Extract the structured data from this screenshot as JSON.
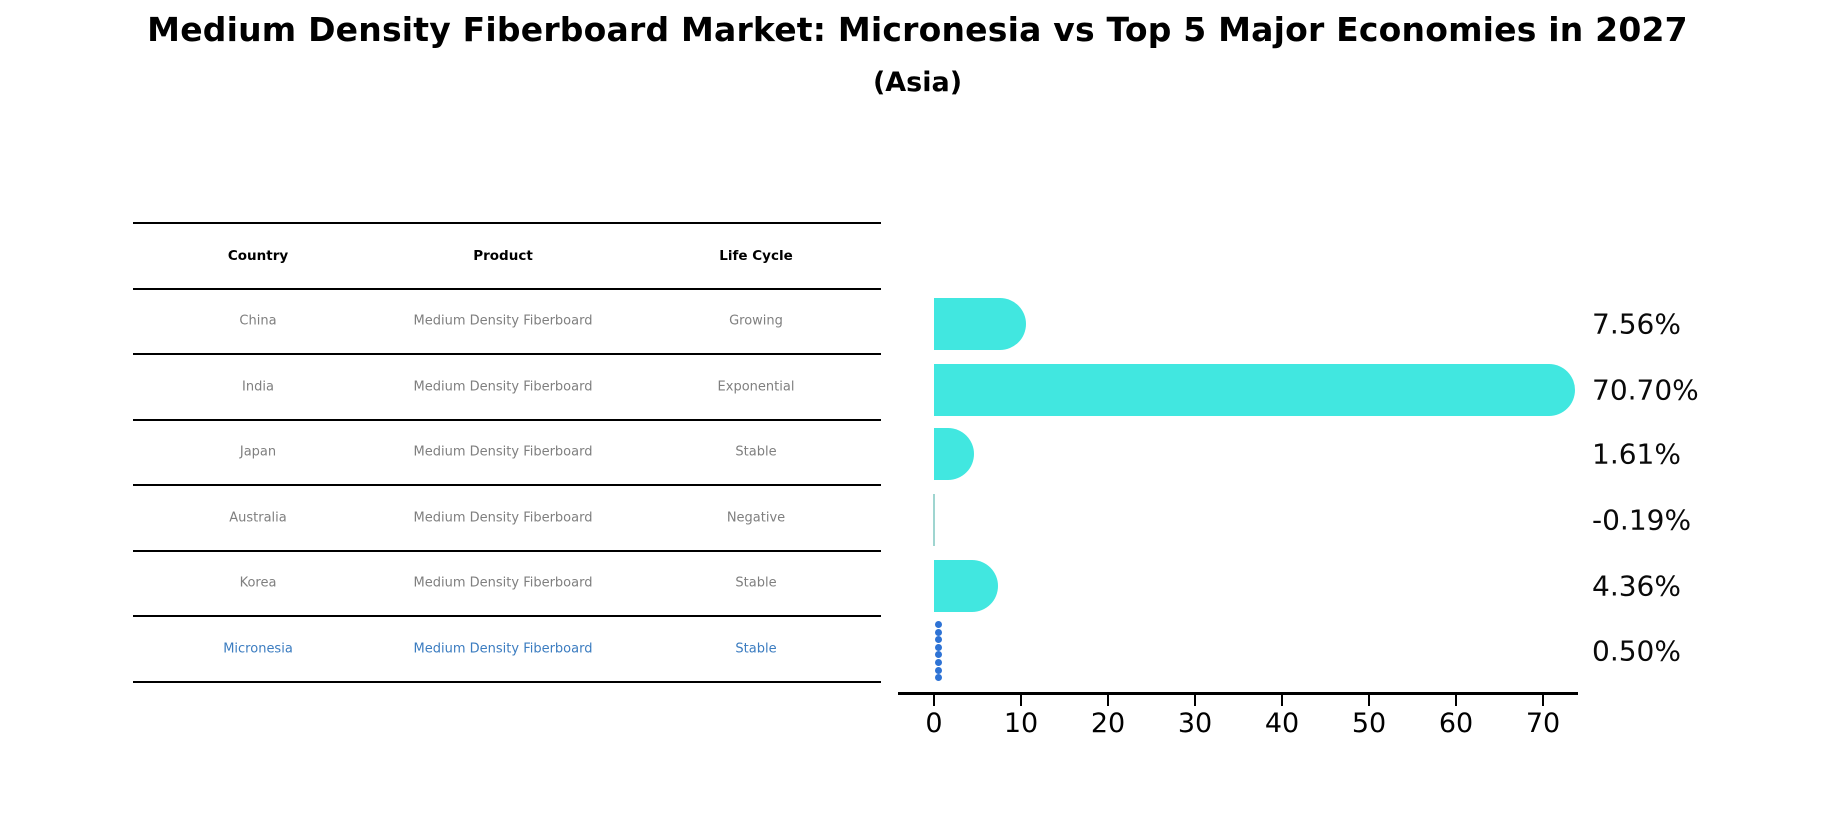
{
  "title": "Medium Density Fiberboard Market: Micronesia vs Top 5 Major Economies in 2027",
  "subtitle": "(Asia)",
  "table": {
    "headers": [
      "Country",
      "Product",
      "Life Cycle"
    ],
    "rows": [
      {
        "country": "China",
        "product": "Medium Density Fiberboard",
        "life_cycle": "Growing",
        "highlight": false
      },
      {
        "country": "India",
        "product": "Medium Density Fiberboard",
        "life_cycle": "Exponential",
        "highlight": false
      },
      {
        "country": "Japan",
        "product": "Medium Density Fiberboard",
        "life_cycle": "Stable",
        "highlight": false
      },
      {
        "country": "Australia",
        "product": "Medium Density Fiberboard",
        "life_cycle": "Negative",
        "highlight": false
      },
      {
        "country": "Korea",
        "product": "Medium Density Fiberboard",
        "life_cycle": "Stable",
        "highlight": false
      },
      {
        "country": "Micronesia",
        "product": "Medium Density Fiberboard",
        "life_cycle": "Stable",
        "highlight": true
      }
    ]
  },
  "chart_data": {
    "type": "bar",
    "orientation": "horizontal",
    "title": "Medium Density Fiberboard Market: Micronesia vs Top 5 Major Economies in 2027 (Asia)",
    "categories": [
      "China",
      "India",
      "Japan",
      "Australia",
      "Korea",
      "Micronesia"
    ],
    "values": [
      7.56,
      70.7,
      1.61,
      -0.19,
      4.36,
      0.5
    ],
    "value_labels": [
      "7.56%",
      "70.70%",
      "1.61%",
      "-0.19%",
      "4.36%",
      "0.50%"
    ],
    "xlabel": "",
    "ylabel": "",
    "xticks": [
      0,
      10,
      20,
      30,
      40,
      50,
      60,
      70
    ],
    "xlim": [
      -4,
      74.4
    ],
    "grid": false,
    "legend": false,
    "highlight_index": 5,
    "highlight_marker": "dotted-vertical-line"
  },
  "colors": {
    "bar": "#41E7E0",
    "negative_line": "#9fd5d0",
    "highlight_dots": "#2E73D5",
    "highlight_text": "#3B7CC0",
    "row_text": "#7f7f7f",
    "header_text": "#000000",
    "axis": "#000000",
    "label_text": "#0a0a0a"
  }
}
